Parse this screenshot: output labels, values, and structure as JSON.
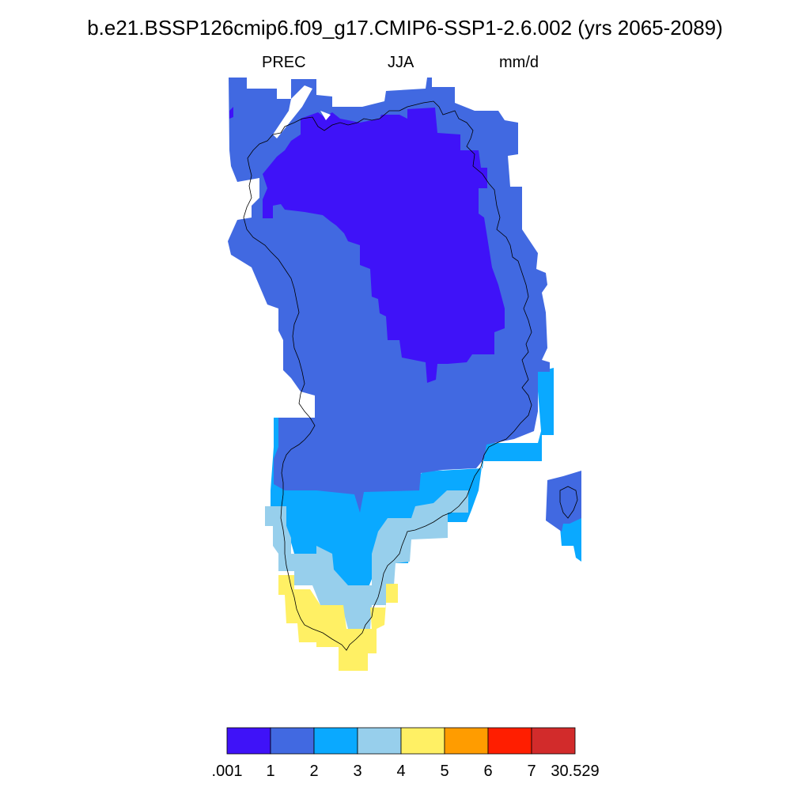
{
  "title": "b.e21.BSSP126cmip6.f09_g17.CMIP6-SSP1-2.6.002 (yrs 2065-2089)",
  "subtitle": {
    "variable": "PREC",
    "season": "JJA",
    "units": "mm/d"
  },
  "legend": {
    "colors": [
      "#3f12f8",
      "#4169e1",
      "#0aa9ff",
      "#97cfec",
      "#fff064",
      "#ff9c00",
      "#ff1e00",
      "#d22b2b"
    ],
    "labels": [
      ".001",
      "1",
      "2",
      "3",
      "4",
      "5",
      "6",
      "7",
      "30.529"
    ]
  },
  "map_regions": [
    {
      "name": "region-2-3",
      "range": "2-3",
      "color": "#0aa9ff"
    },
    {
      "name": "region-1-2",
      "range": "1-2",
      "color": "#4169e1"
    },
    {
      "name": "region-0-1",
      "range": ".001-1",
      "color": "#3f12f8"
    },
    {
      "name": "region-3-4",
      "range": "3-4",
      "color": "#97cfec"
    },
    {
      "name": "region-4-5",
      "range": "4-5",
      "color": "#fff064"
    }
  ]
}
